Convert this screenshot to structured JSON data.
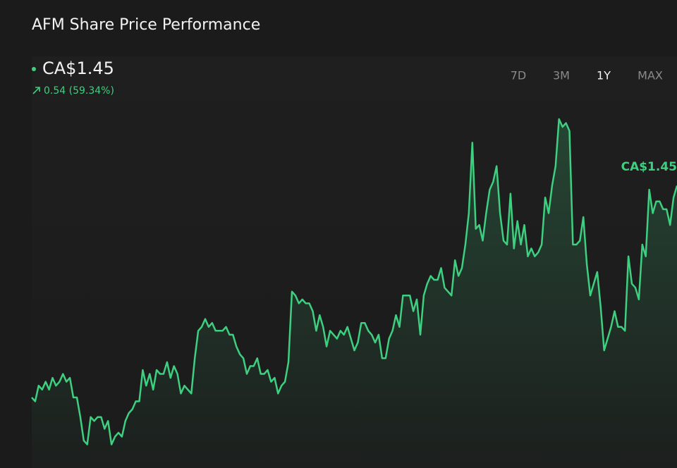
{
  "chart_data": {
    "type": "line",
    "title": "AFM Share Price Performance",
    "price": "CA$1.45",
    "change": "0.54 (59.34%)",
    "ranges": [
      "7D",
      "3M",
      "1Y",
      "MAX"
    ],
    "selected_range": 2,
    "color": "#3ecf80",
    "ylim": [
      0.73,
      1.78
    ],
    "values": [
      0.91,
      0.9,
      0.94,
      0.93,
      0.95,
      0.93,
      0.96,
      0.94,
      0.95,
      0.97,
      0.95,
      0.96,
      0.91,
      0.91,
      0.86,
      0.8,
      0.79,
      0.86,
      0.85,
      0.86,
      0.86,
      0.83,
      0.85,
      0.79,
      0.81,
      0.82,
      0.81,
      0.85,
      0.87,
      0.88,
      0.9,
      0.9,
      0.98,
      0.94,
      0.97,
      0.93,
      0.98,
      0.97,
      0.97,
      1.0,
      0.96,
      0.99,
      0.97,
      0.92,
      0.94,
      0.93,
      0.92,
      1.01,
      1.08,
      1.09,
      1.11,
      1.09,
      1.1,
      1.08,
      1.08,
      1.08,
      1.09,
      1.07,
      1.07,
      1.04,
      1.02,
      1.01,
      0.97,
      0.99,
      0.99,
      1.01,
      0.97,
      0.97,
      0.98,
      0.95,
      0.96,
      0.92,
      0.94,
      0.95,
      1.0,
      1.18,
      1.17,
      1.15,
      1.16,
      1.15,
      1.15,
      1.13,
      1.08,
      1.12,
      1.09,
      1.04,
      1.08,
      1.07,
      1.06,
      1.08,
      1.07,
      1.09,
      1.06,
      1.03,
      1.05,
      1.1,
      1.1,
      1.08,
      1.07,
      1.05,
      1.07,
      1.01,
      1.01,
      1.06,
      1.08,
      1.12,
      1.09,
      1.17,
      1.17,
      1.17,
      1.13,
      1.16,
      1.07,
      1.17,
      1.2,
      1.22,
      1.21,
      1.21,
      1.24,
      1.19,
      1.18,
      1.17,
      1.26,
      1.22,
      1.24,
      1.3,
      1.38,
      1.56,
      1.34,
      1.35,
      1.31,
      1.38,
      1.44,
      1.46,
      1.5,
      1.38,
      1.31,
      1.3,
      1.43,
      1.29,
      1.36,
      1.3,
      1.35,
      1.27,
      1.29,
      1.27,
      1.28,
      1.3,
      1.42,
      1.38,
      1.45,
      1.5,
      1.62,
      1.6,
      1.61,
      1.59,
      1.3,
      1.3,
      1.31,
      1.37,
      1.25,
      1.17,
      1.2,
      1.23,
      1.14,
      1.03,
      1.06,
      1.09,
      1.13,
      1.09,
      1.09,
      1.08,
      1.27,
      1.2,
      1.19,
      1.16,
      1.3,
      1.27,
      1.44,
      1.38,
      1.41,
      1.41,
      1.39,
      1.39,
      1.35,
      1.42,
      1.45
    ]
  }
}
